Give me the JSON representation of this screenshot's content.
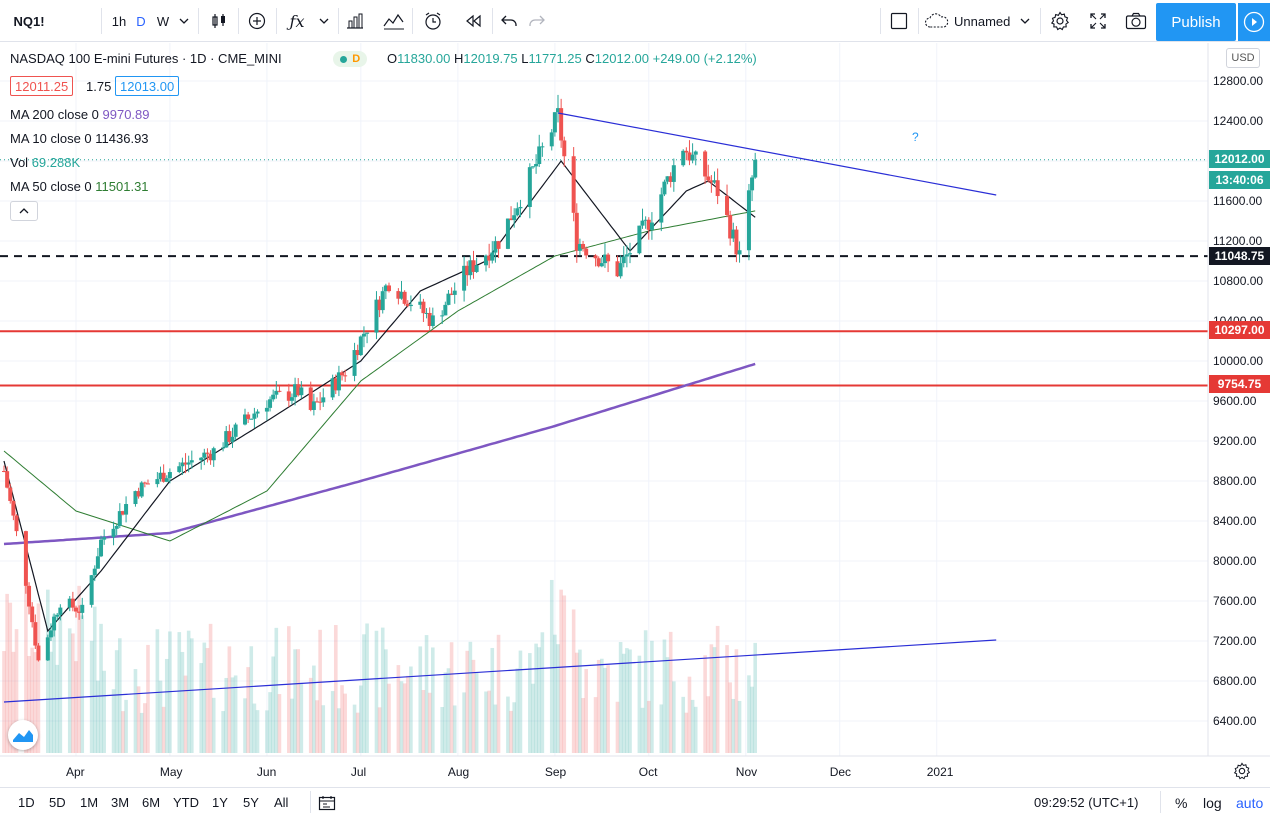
{
  "toolbar": {
    "symbol": "NQ1!",
    "intervals": [
      "1h",
      "D",
      "W"
    ],
    "layout_name": "Unnamed",
    "publish_label": "Publish"
  },
  "legend": {
    "title": "NASDAQ 100 E-mini Futures · 1D · CME_MINI",
    "market_badge": "D",
    "ohlc": {
      "open_label": "O",
      "open": "11830.00",
      "high_label": "H",
      "high": "12019.75",
      "low_label": "L",
      "low": "11771.25",
      "close_label": "C",
      "close": "12012.00",
      "change": "+249.00 (+2.12%)"
    },
    "bid": "12011.25",
    "spread": "1.75",
    "ask": "12013.00",
    "indicators": [
      {
        "name": "MA 200 close 0",
        "value": "9970.89",
        "color": "#7e57c2"
      },
      {
        "name": "MA 10 close 0",
        "value": "11436.93",
        "color": "#131722"
      },
      {
        "name": "Vol",
        "value": "69.288K",
        "color": "#26a69a"
      },
      {
        "name": "MA 50 close 0",
        "value": "11501.31",
        "color": "#2e7d32"
      }
    ]
  },
  "price_scale": {
    "currency": "USD",
    "ticks": [
      "12800.00",
      "12400.00",
      "12000.00",
      "11600.00",
      "11200.00",
      "10800.00",
      "10400.00",
      "10000.00",
      "9600.00",
      "9200.00",
      "8800.00",
      "8400.00",
      "8000.00",
      "7600.00",
      "7200.00",
      "6800.00",
      "6400.00"
    ],
    "last_price": "12012.00",
    "countdown": "13:40:06",
    "level_1": "11048.75",
    "level_2": "10297.00",
    "level_3": "9754.75"
  },
  "time_axis": {
    "labels": [
      "Apr",
      "May",
      "Jun",
      "Jul",
      "Aug",
      "Sep",
      "Oct",
      "Nov",
      "Dec",
      "2021"
    ]
  },
  "annotation": "?",
  "bottom": {
    "ranges": [
      "1D",
      "5D",
      "1M",
      "3M",
      "6M",
      "YTD",
      "1Y",
      "5Y",
      "All"
    ],
    "clock": "09:29:52 (UTC+1)",
    "percent": "%",
    "log": "log",
    "auto": "auto"
  },
  "colors": {
    "up": "#26a69a",
    "down": "#ef5350",
    "accent": "#2196f3",
    "support_line": "#e53935",
    "trend_line": "#2a2ed6"
  },
  "chart_data": {
    "type": "candlestick",
    "title": "NASDAQ 100 E-mini Futures · 1D · CME_MINI",
    "x_range": [
      "2020-03-09",
      "2021-01-20"
    ],
    "y_range": [
      6000,
      13000
    ],
    "price_waypoints": [
      {
        "date": "2020-03-09",
        "close": 8900
      },
      {
        "date": "2020-03-16",
        "close": 7800
      },
      {
        "date": "2020-03-20",
        "close": 7000
      },
      {
        "date": "2020-03-27",
        "close": 7600
      },
      {
        "date": "2020-04-03",
        "close": 7500
      },
      {
        "date": "2020-04-09",
        "close": 8200
      },
      {
        "date": "2020-04-20",
        "close": 8700
      },
      {
        "date": "2020-05-01",
        "close": 8900
      },
      {
        "date": "2020-05-15",
        "close": 9100
      },
      {
        "date": "2020-06-01",
        "close": 9600
      },
      {
        "date": "2020-06-11",
        "close": 9700
      },
      {
        "date": "2020-06-15",
        "close": 9500
      },
      {
        "date": "2020-06-26",
        "close": 9900
      },
      {
        "date": "2020-07-10",
        "close": 10800
      },
      {
        "date": "2020-07-24",
        "close": 10400
      },
      {
        "date": "2020-08-04",
        "close": 10900
      },
      {
        "date": "2020-08-14",
        "close": 11200
      },
      {
        "date": "2020-08-25",
        "close": 11900
      },
      {
        "date": "2020-09-02",
        "close": 12450
      },
      {
        "date": "2020-09-08",
        "close": 11200
      },
      {
        "date": "2020-09-21",
        "close": 10900
      },
      {
        "date": "2020-10-01",
        "close": 11400
      },
      {
        "date": "2020-10-12",
        "close": 12150
      },
      {
        "date": "2020-10-23",
        "close": 11700
      },
      {
        "date": "2020-10-30",
        "close": 11050
      },
      {
        "date": "2020-11-04",
        "close": 12012
      }
    ],
    "ma10_waypoints": [
      {
        "date": "2020-03-09",
        "value": 9000
      },
      {
        "date": "2020-03-23",
        "value": 7300
      },
      {
        "date": "2020-04-09",
        "value": 7900
      },
      {
        "date": "2020-05-01",
        "value": 8800
      },
      {
        "date": "2020-06-01",
        "value": 9400
      },
      {
        "date": "2020-07-01",
        "value": 10000
      },
      {
        "date": "2020-07-20",
        "value": 10700
      },
      {
        "date": "2020-08-10",
        "value": 11000
      },
      {
        "date": "2020-09-03",
        "value": 12000
      },
      {
        "date": "2020-09-25",
        "value": 11100
      },
      {
        "date": "2020-10-13",
        "value": 11700
      },
      {
        "date": "2020-10-20",
        "value": 11800
      },
      {
        "date": "2020-11-04",
        "value": 11437
      }
    ],
    "ma50_waypoints": [
      {
        "date": "2020-03-09",
        "value": 9100
      },
      {
        "date": "2020-04-01",
        "value": 8500
      },
      {
        "date": "2020-05-01",
        "value": 8200
      },
      {
        "date": "2020-06-01",
        "value": 8700
      },
      {
        "date": "2020-07-01",
        "value": 9800
      },
      {
        "date": "2020-08-01",
        "value": 10500
      },
      {
        "date": "2020-09-01",
        "value": 11050
      },
      {
        "date": "2020-10-01",
        "value": 11300
      },
      {
        "date": "2020-11-04",
        "value": 11501
      }
    ],
    "ma200_waypoints": [
      {
        "date": "2020-03-09",
        "value": 8170
      },
      {
        "date": "2020-05-01",
        "value": 8280
      },
      {
        "date": "2020-07-01",
        "value": 8800
      },
      {
        "date": "2020-09-01",
        "value": 9350
      },
      {
        "date": "2020-11-04",
        "value": 9971
      }
    ],
    "horizontal_levels": [
      11048.75,
      10297.0,
      9754.75
    ],
    "trend_lines": [
      {
        "from": {
          "date": "2020-09-02",
          "price": 12480
        },
        "to": {
          "date": "2021-01-20",
          "price": 11660
        }
      },
      {
        "from": {
          "date": "2020-03-09",
          "price": 6590
        },
        "to": {
          "date": "2021-01-20",
          "price": 7210
        }
      }
    ],
    "volume_scale_max": 1
  }
}
